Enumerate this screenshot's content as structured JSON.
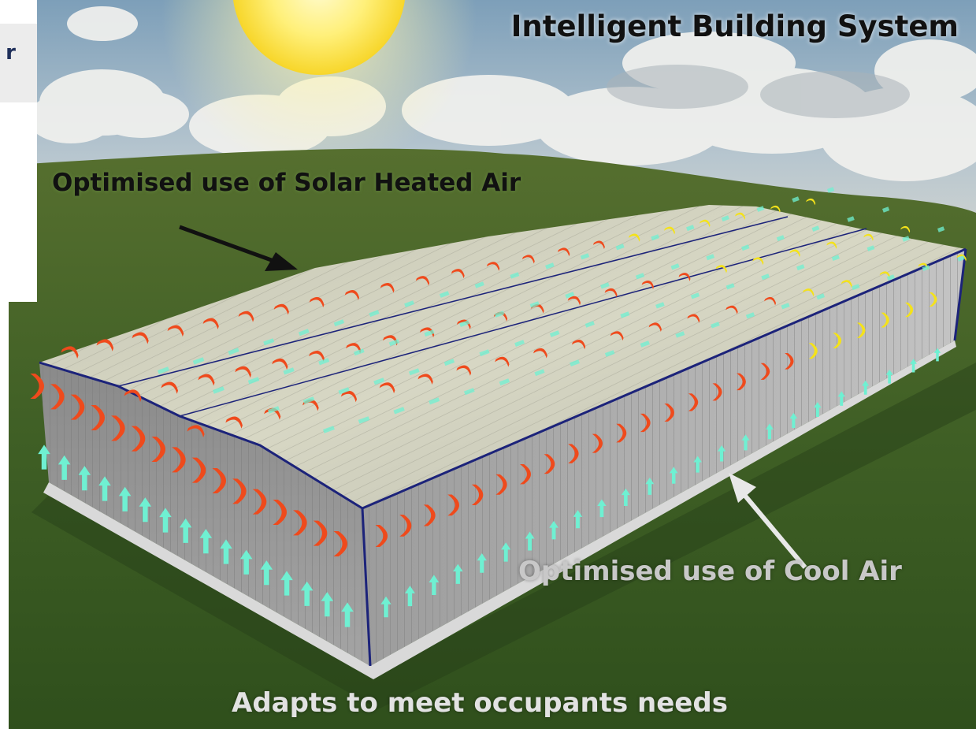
{
  "title": "Intelligent Building System",
  "labels": {
    "solar": "Optimised use of Solar Heated Air",
    "cool": "Optimised use of Cool Air",
    "footer": "Adapts to meet occupants needs",
    "corner_fragment": "r"
  },
  "colors": {
    "warm_arrow": "#ef4a1c",
    "exhaust_arrow": "#f4e21a",
    "cool_arrow": "#6ff0d2",
    "grass": "#4a6a2a",
    "sky": "#9fb8cc",
    "sun": "#fce34a",
    "roof_edge": "#1c237a"
  },
  "icons": [
    "sun-icon",
    "cloud-icon",
    "arrow-icon"
  ]
}
